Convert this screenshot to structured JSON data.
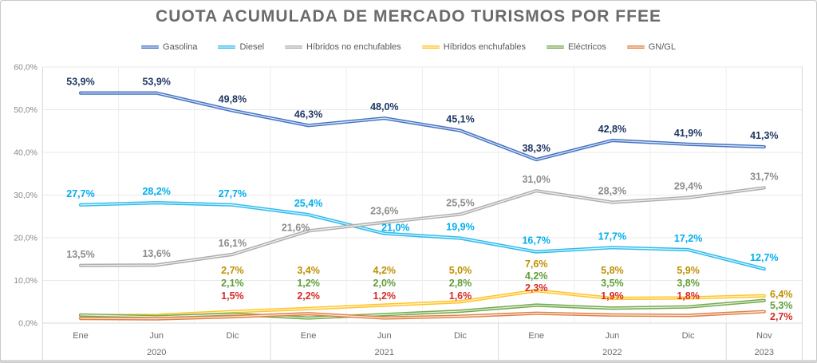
{
  "title": "CUOTA ACUMULADA DE MERCADO TURISMOS POR FFEE",
  "chart_data": {
    "type": "line",
    "title": "CUOTA ACUMULADA DE MERCADO TURISMOS POR FFEE",
    "legend_position": "top",
    "grid": true,
    "categories": [
      "Ene",
      "Jun",
      "Dic",
      "Ene",
      "Jun",
      "Dic",
      "Ene",
      "Jun",
      "Dic",
      "Nov"
    ],
    "year_groups": [
      {
        "label": "2020",
        "from": 0,
        "to": 2
      },
      {
        "label": "2021",
        "from": 3,
        "to": 5
      },
      {
        "label": "2022",
        "from": 6,
        "to": 8
      },
      {
        "label": "2023",
        "from": 9,
        "to": 9
      }
    ],
    "y_axis": {
      "min": 0,
      "max": 60,
      "step": 10,
      "tick_values": [
        0,
        10,
        20,
        30,
        40,
        50,
        60
      ],
      "tick_labels": [
        "0,0%",
        "10,0%",
        "20,0%",
        "30,0%",
        "40,0%",
        "50,0%",
        "60,0%"
      ]
    },
    "series": [
      {
        "name": "Gasolina",
        "color": "#4472C4",
        "label_color": "#1F3864",
        "values": [
          53.9,
          53.9,
          49.8,
          46.3,
          48.0,
          45.1,
          38.3,
          42.8,
          41.9,
          41.3
        ],
        "labels": [
          "53,9%",
          "53,9%",
          "49,8%",
          "46,3%",
          "48,0%",
          "45,1%",
          "38,3%",
          "42,8%",
          "41,9%",
          "41,3%"
        ]
      },
      {
        "name": "Diesel",
        "color": "#2FBCEC",
        "label_color": "#00AEEF",
        "values": [
          27.7,
          28.2,
          27.7,
          25.4,
          21.0,
          19.9,
          16.7,
          17.7,
          17.2,
          12.7
        ],
        "labels": [
          "27,7%",
          "28,2%",
          "27,7%",
          "25,4%",
          "21,0%",
          "19,9%",
          "16,7%",
          "17,7%",
          "17,2%",
          "12,7%"
        ]
      },
      {
        "name": "Híbridos no enchufables",
        "color": "#AFAFAF",
        "label_color": "#8C8C8C",
        "values": [
          13.5,
          13.6,
          16.1,
          21.6,
          23.6,
          25.5,
          31.0,
          28.3,
          29.4,
          31.7
        ],
        "labels": [
          "13,5%",
          "13,6%",
          "16,1%",
          "21,6%",
          "23,6%",
          "25,5%",
          "31,0%",
          "28,3%",
          "29,4%",
          "31,7%"
        ]
      },
      {
        "name": "Híbridos enchufables",
        "color": "#FFC426",
        "label_color": "#BF9000",
        "values": [
          1.7,
          1.8,
          2.7,
          3.4,
          4.2,
          5.0,
          7.6,
          5.8,
          5.9,
          6.4
        ],
        "labels": [
          null,
          null,
          "2,7%",
          "3,4%",
          "4,2%",
          "5,0%",
          "7,6%",
          "5,8%",
          "5,9%",
          "6,4%"
        ]
      },
      {
        "name": "Eléctricos",
        "color": "#73AB4C",
        "label_color": "#5F9E38",
        "values": [
          1.9,
          1.5,
          2.1,
          1.2,
          2.0,
          2.8,
          4.2,
          3.5,
          3.8,
          5.3
        ],
        "labels": [
          null,
          null,
          "2,1%",
          "1,2%",
          "2,0%",
          "2,8%",
          "4,2%",
          "3,5%",
          "3,8%",
          "5,3%"
        ]
      },
      {
        "name": "GN/GL",
        "color": "#DE8348",
        "label_color": "#D62B27",
        "values": [
          1.1,
          1.0,
          1.5,
          2.2,
          1.2,
          1.6,
          2.3,
          1.9,
          1.8,
          2.7
        ],
        "labels": [
          null,
          null,
          "1,5%",
          "2,2%",
          "1,2%",
          "1,6%",
          "2,3%",
          "1,9%",
          "1,8%",
          "2,7%"
        ]
      }
    ]
  }
}
